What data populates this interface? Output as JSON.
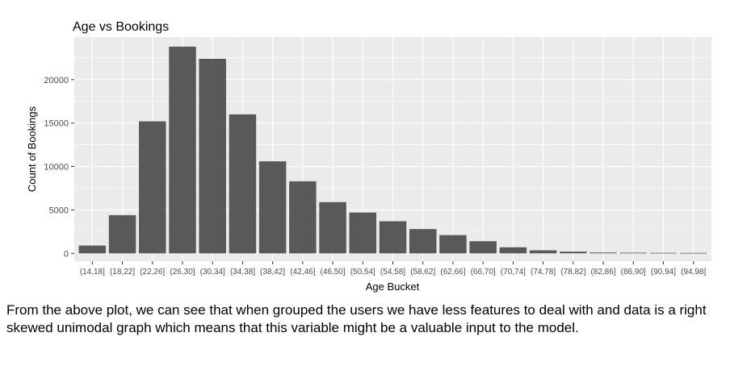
{
  "colors": {
    "panel": "#ebebeb",
    "grid_major": "#ffffff",
    "bar": "#595959",
    "text": "#000000",
    "tick_text": "#4d4d4d"
  },
  "chart_data": {
    "type": "bar",
    "title": "Age vs Bookings",
    "xlabel": "Age Bucket",
    "ylabel": "Count of Bookings",
    "grid": true,
    "legend": "none",
    "ylim": [
      -900,
      24900
    ],
    "yticks": [
      0,
      5000,
      10000,
      15000,
      20000
    ],
    "categories": [
      "(14,18]",
      "(18,22]",
      "(22,26]",
      "(26,30]",
      "(30,34]",
      "(34,38]",
      "(38,42]",
      "(42,46]",
      "(46,50]",
      "(50,54]",
      "(54,58]",
      "(58,62]",
      "(62,66]",
      "(66,70]",
      "(70,74]",
      "(74,78]",
      "(78,82]",
      "(82,86]",
      "(86,90]",
      "(90,94]",
      "(94,98]"
    ],
    "values": [
      900,
      4400,
      15200,
      23800,
      22400,
      16000,
      10600,
      8300,
      5900,
      4700,
      3700,
      2800,
      2100,
      1400,
      700,
      350,
      200,
      100,
      80,
      60,
      50
    ]
  },
  "caption": "From the above plot, we can see that when grouped the users we have less features to deal with and data is a right skewed unimodal graph which means that this variable might be a valuable input to the model."
}
